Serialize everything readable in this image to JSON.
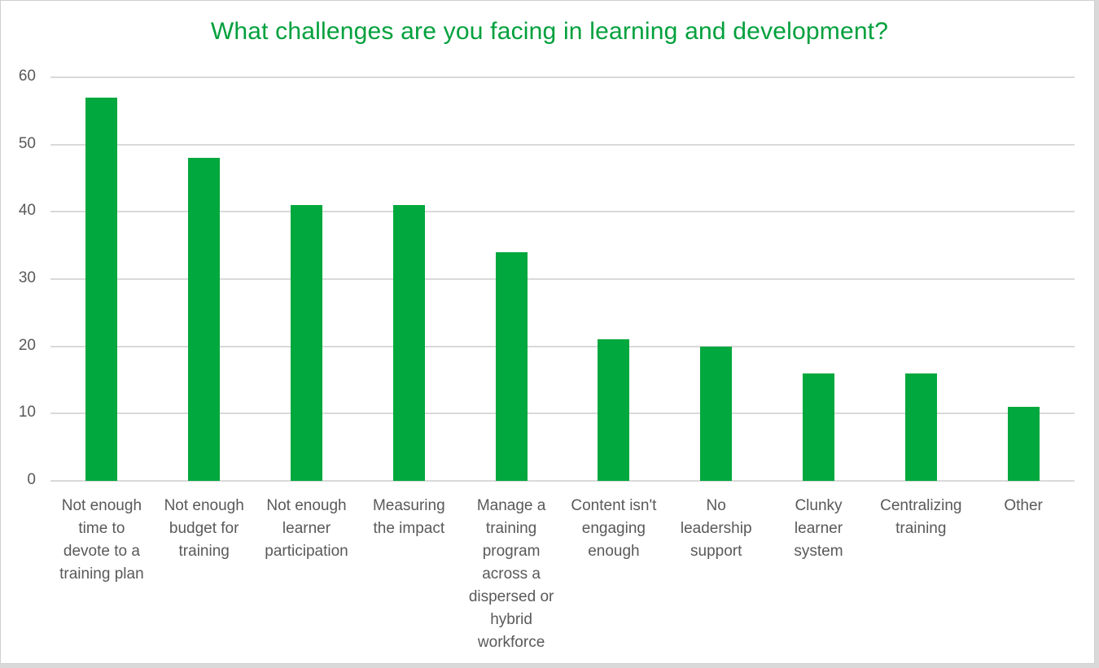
{
  "chart_data": {
    "type": "bar",
    "title": "What challenges are you facing in learning and development?",
    "xlabel": "",
    "ylabel": "",
    "ylim": [
      0,
      60
    ],
    "yticks": [
      0,
      10,
      20,
      30,
      40,
      50,
      60
    ],
    "grid": true,
    "legend": "none",
    "bar_color": "#00a83d",
    "title_color": "#00a03c",
    "categories": [
      "Not enough time to devote to a training plan",
      "Not enough budget for training",
      "Not enough learner participation",
      "Measuring the impact",
      "Manage a training program across a dispersed or hybrid workforce",
      "Content isn't engaging enough",
      "No leadership support",
      "Clunky learner system",
      "Centralizing training",
      "Other"
    ],
    "category_label_lines": [
      "Not enough\ntime to\ndevote to a\ntraining plan",
      "Not enough\nbudget for\ntraining",
      "Not enough\nlearner\nparticipation",
      "Measuring\nthe impact",
      "Manage a\ntraining\nprogram\nacross a\ndispersed or\nhybrid\nworkforce",
      "Content isn't\nengaging\nenough",
      "No\nleadership\nsupport",
      "Clunky\nlearner\nsystem",
      "Centralizing\ntraining",
      "Other"
    ],
    "values": [
      57,
      48,
      41,
      41,
      34,
      21,
      20,
      16,
      16,
      11
    ]
  }
}
